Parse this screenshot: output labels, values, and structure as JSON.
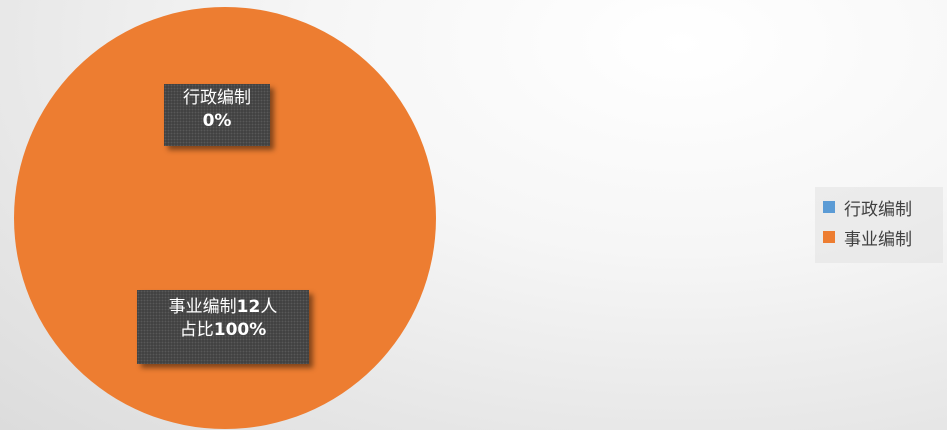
{
  "chart_data": {
    "type": "pie",
    "categories": [
      "行政编制",
      "事业编制"
    ],
    "values": [
      0,
      12
    ],
    "colors": [
      "#5b9bd5",
      "#ed7d31"
    ],
    "data_labels": [
      {
        "category": "行政编制",
        "line1": "行政编制",
        "line2": "0%"
      },
      {
        "category": "事业编制",
        "line1_prefix": "事业编制",
        "line1_bold": "12",
        "line1_suffix": "人",
        "line2_prefix": "占比",
        "line2_bold": "100%"
      }
    ],
    "legend": {
      "position": "right",
      "entries": [
        "行政编制",
        "事业编制"
      ]
    }
  }
}
